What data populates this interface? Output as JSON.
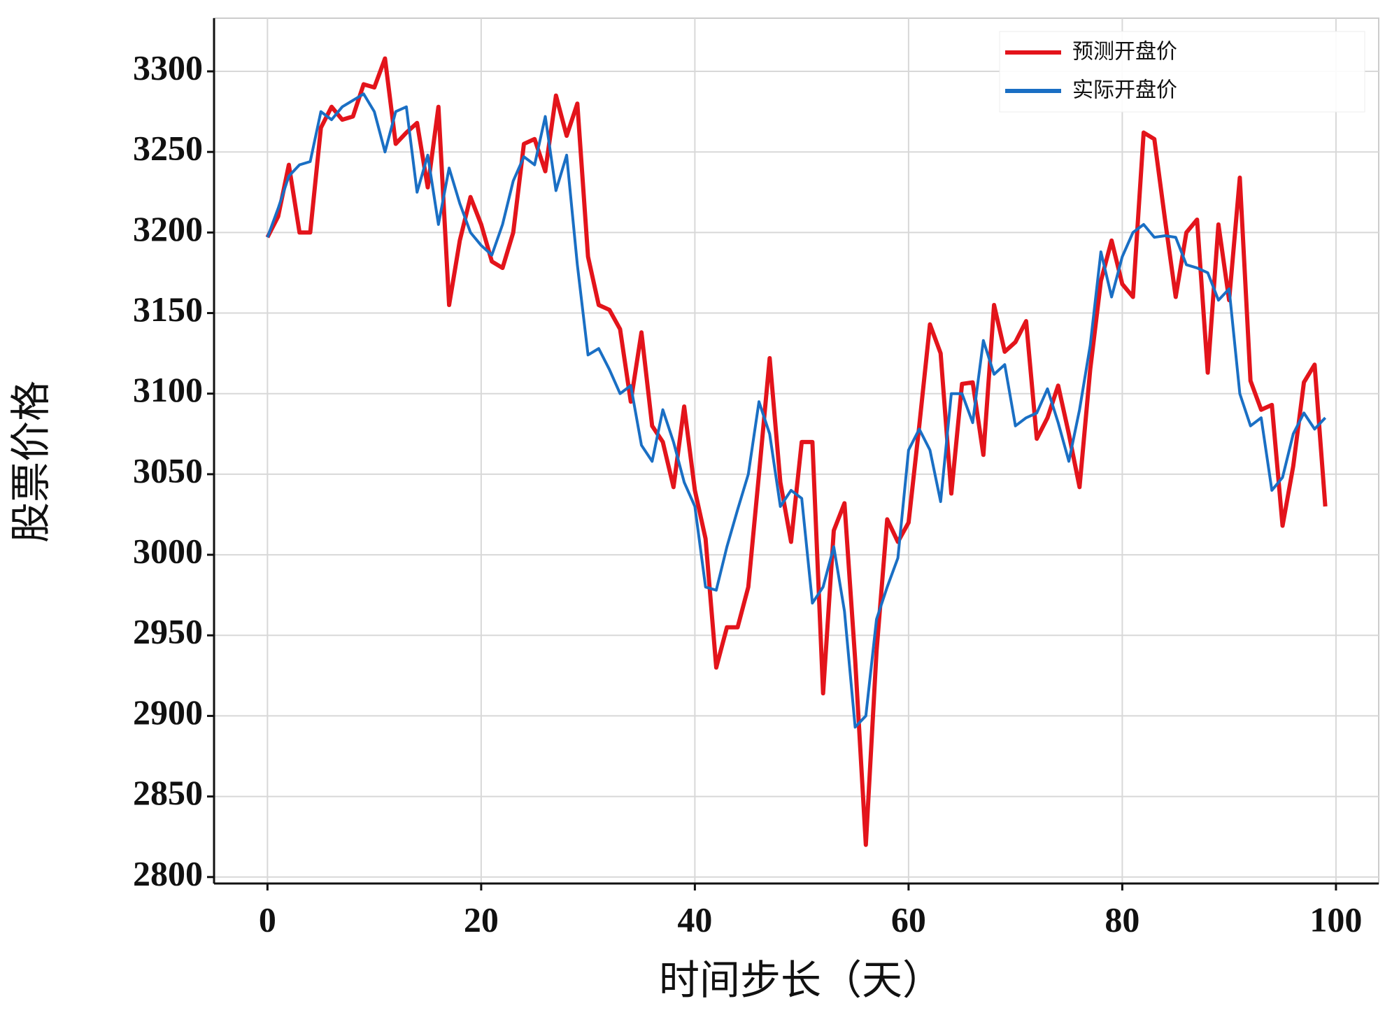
{
  "chart_data": {
    "type": "line",
    "y_label": "股票价格",
    "x_label": "时间步长（天）",
    "x": [
      0,
      1,
      2,
      3,
      4,
      5,
      6,
      7,
      8,
      9,
      10,
      11,
      12,
      13,
      14,
      15,
      16,
      17,
      18,
      19,
      20,
      21,
      22,
      23,
      24,
      25,
      26,
      27,
      28,
      29,
      30,
      31,
      32,
      33,
      34,
      35,
      36,
      37,
      38,
      39,
      40,
      41,
      42,
      43,
      44,
      45,
      46,
      47,
      48,
      49,
      50,
      51,
      52,
      53,
      54,
      55,
      56,
      57,
      58,
      59,
      60,
      61,
      62,
      63,
      64,
      65,
      66,
      67,
      68,
      69,
      70,
      71,
      72,
      73,
      74,
      75,
      76,
      77,
      78,
      79,
      80,
      81,
      82,
      83,
      84,
      85,
      86,
      87,
      88,
      89,
      90,
      91,
      92,
      93,
      94,
      95,
      96,
      97,
      98,
      99
    ],
    "series": [
      {
        "name": "预测开盘价",
        "color": "#e3141b",
        "values": [
          3197,
          3210,
          3242,
          3200,
          3200,
          3265,
          3278,
          3270,
          3272,
          3292,
          3290,
          3308,
          3255,
          3262,
          3268,
          3228,
          3278,
          3155,
          3195,
          3222,
          3205,
          3182,
          3178,
          3200,
          3255,
          3258,
          3238,
          3285,
          3260,
          3280,
          3185,
          3155,
          3152,
          3140,
          3095,
          3138,
          3080,
          3070,
          3042,
          3092,
          3040,
          3010,
          2930,
          2955,
          2955,
          2980,
          3050,
          3122,
          3045,
          3008,
          3070,
          3070,
          2914,
          3015,
          3032,
          2935,
          2820,
          2940,
          3022,
          3008,
          3020,
          3080,
          3143,
          3125,
          3038,
          3106,
          3107,
          3062,
          3155,
          3126,
          3132,
          3145,
          3072,
          3085,
          3105,
          3075,
          3042,
          3115,
          3170,
          3195,
          3168,
          3160,
          3262,
          3258,
          3208,
          3160,
          3200,
          3208,
          3113,
          3205,
          3158,
          3234,
          3108,
          3090,
          3093,
          3018,
          3055,
          3107,
          3118,
          3030
        ]
      },
      {
        "name": "实际开盘价",
        "color": "#1a6fc4",
        "values": [
          3197,
          3215,
          3235,
          3242,
          3244,
          3275,
          3270,
          3278,
          3282,
          3286,
          3275,
          3250,
          3275,
          3278,
          3225,
          3248,
          3205,
          3240,
          3218,
          3200,
          3192,
          3186,
          3205,
          3232,
          3247,
          3242,
          3272,
          3226,
          3248,
          3180,
          3124,
          3128,
          3115,
          3100,
          3105,
          3068,
          3058,
          3090,
          3070,
          3045,
          3030,
          2980,
          2978,
          3005,
          3028,
          3050,
          3095,
          3075,
          3030,
          3040,
          3035,
          2970,
          2980,
          3005,
          2965,
          2893,
          2900,
          2960,
          2980,
          2998,
          3065,
          3078,
          3065,
          3033,
          3100,
          3100,
          3082,
          3133,
          3112,
          3118,
          3080,
          3085,
          3088,
          3103,
          3082,
          3058,
          3090,
          3130,
          3188,
          3160,
          3185,
          3200,
          3205,
          3197,
          3198,
          3197,
          3180,
          3178,
          3175,
          3158,
          3165,
          3100,
          3080,
          3085,
          3040,
          3048,
          3075,
          3088,
          3078,
          3085
        ]
      }
    ],
    "xlim": [
      -5,
      104
    ],
    "xticks": [
      0,
      20,
      40,
      60,
      80,
      100
    ],
    "ylim": [
      2796,
      3333
    ],
    "yticks": [
      2800,
      2850,
      2900,
      2950,
      3000,
      3050,
      3100,
      3150,
      3200,
      3250,
      3300
    ],
    "grid": true,
    "legend": "upper right"
  }
}
